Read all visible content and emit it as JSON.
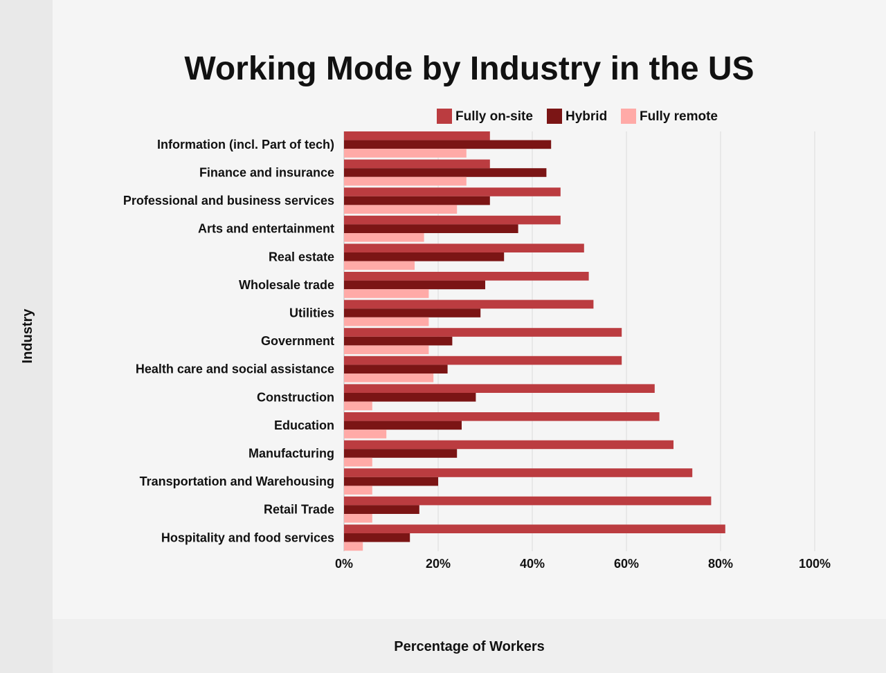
{
  "chart_data": {
    "type": "bar",
    "orientation": "horizontal",
    "title": "Working Mode by Industry in the US",
    "xlabel": "Percentage of Workers",
    "ylabel": "Industry",
    "xlim": [
      0,
      100
    ],
    "xticks": [
      "0%",
      "20%",
      "40%",
      "60%",
      "80%",
      "100%"
    ],
    "grid": true,
    "legend_position": "top",
    "categories": [
      "Information (incl. Part of tech)",
      "Finance and insurance",
      "Professional and business services",
      "Arts and entertainment",
      "Real estate",
      "Wholesale trade",
      "Utilities",
      "Government",
      "Health care and social assistance",
      "Construction",
      "Education",
      "Manufacturing",
      "Transportation and Warehousing",
      "Retail Trade",
      "Hospitality and food services"
    ],
    "series": [
      {
        "name": "Fully on-site",
        "color": "#bb3c40",
        "values": [
          31,
          31,
          46,
          46,
          51,
          52,
          53,
          59,
          59,
          66,
          67,
          70,
          74,
          78,
          81
        ]
      },
      {
        "name": "Hybrid",
        "color": "#7b1515",
        "values": [
          44,
          43,
          31,
          37,
          34,
          30,
          29,
          23,
          22,
          28,
          25,
          24,
          20,
          16,
          14
        ]
      },
      {
        "name": "Fully remote",
        "color": "#ffaaa7",
        "values": [
          26,
          26,
          24,
          17,
          15,
          18,
          18,
          18,
          19,
          6,
          9,
          6,
          6,
          6,
          4
        ]
      }
    ]
  }
}
